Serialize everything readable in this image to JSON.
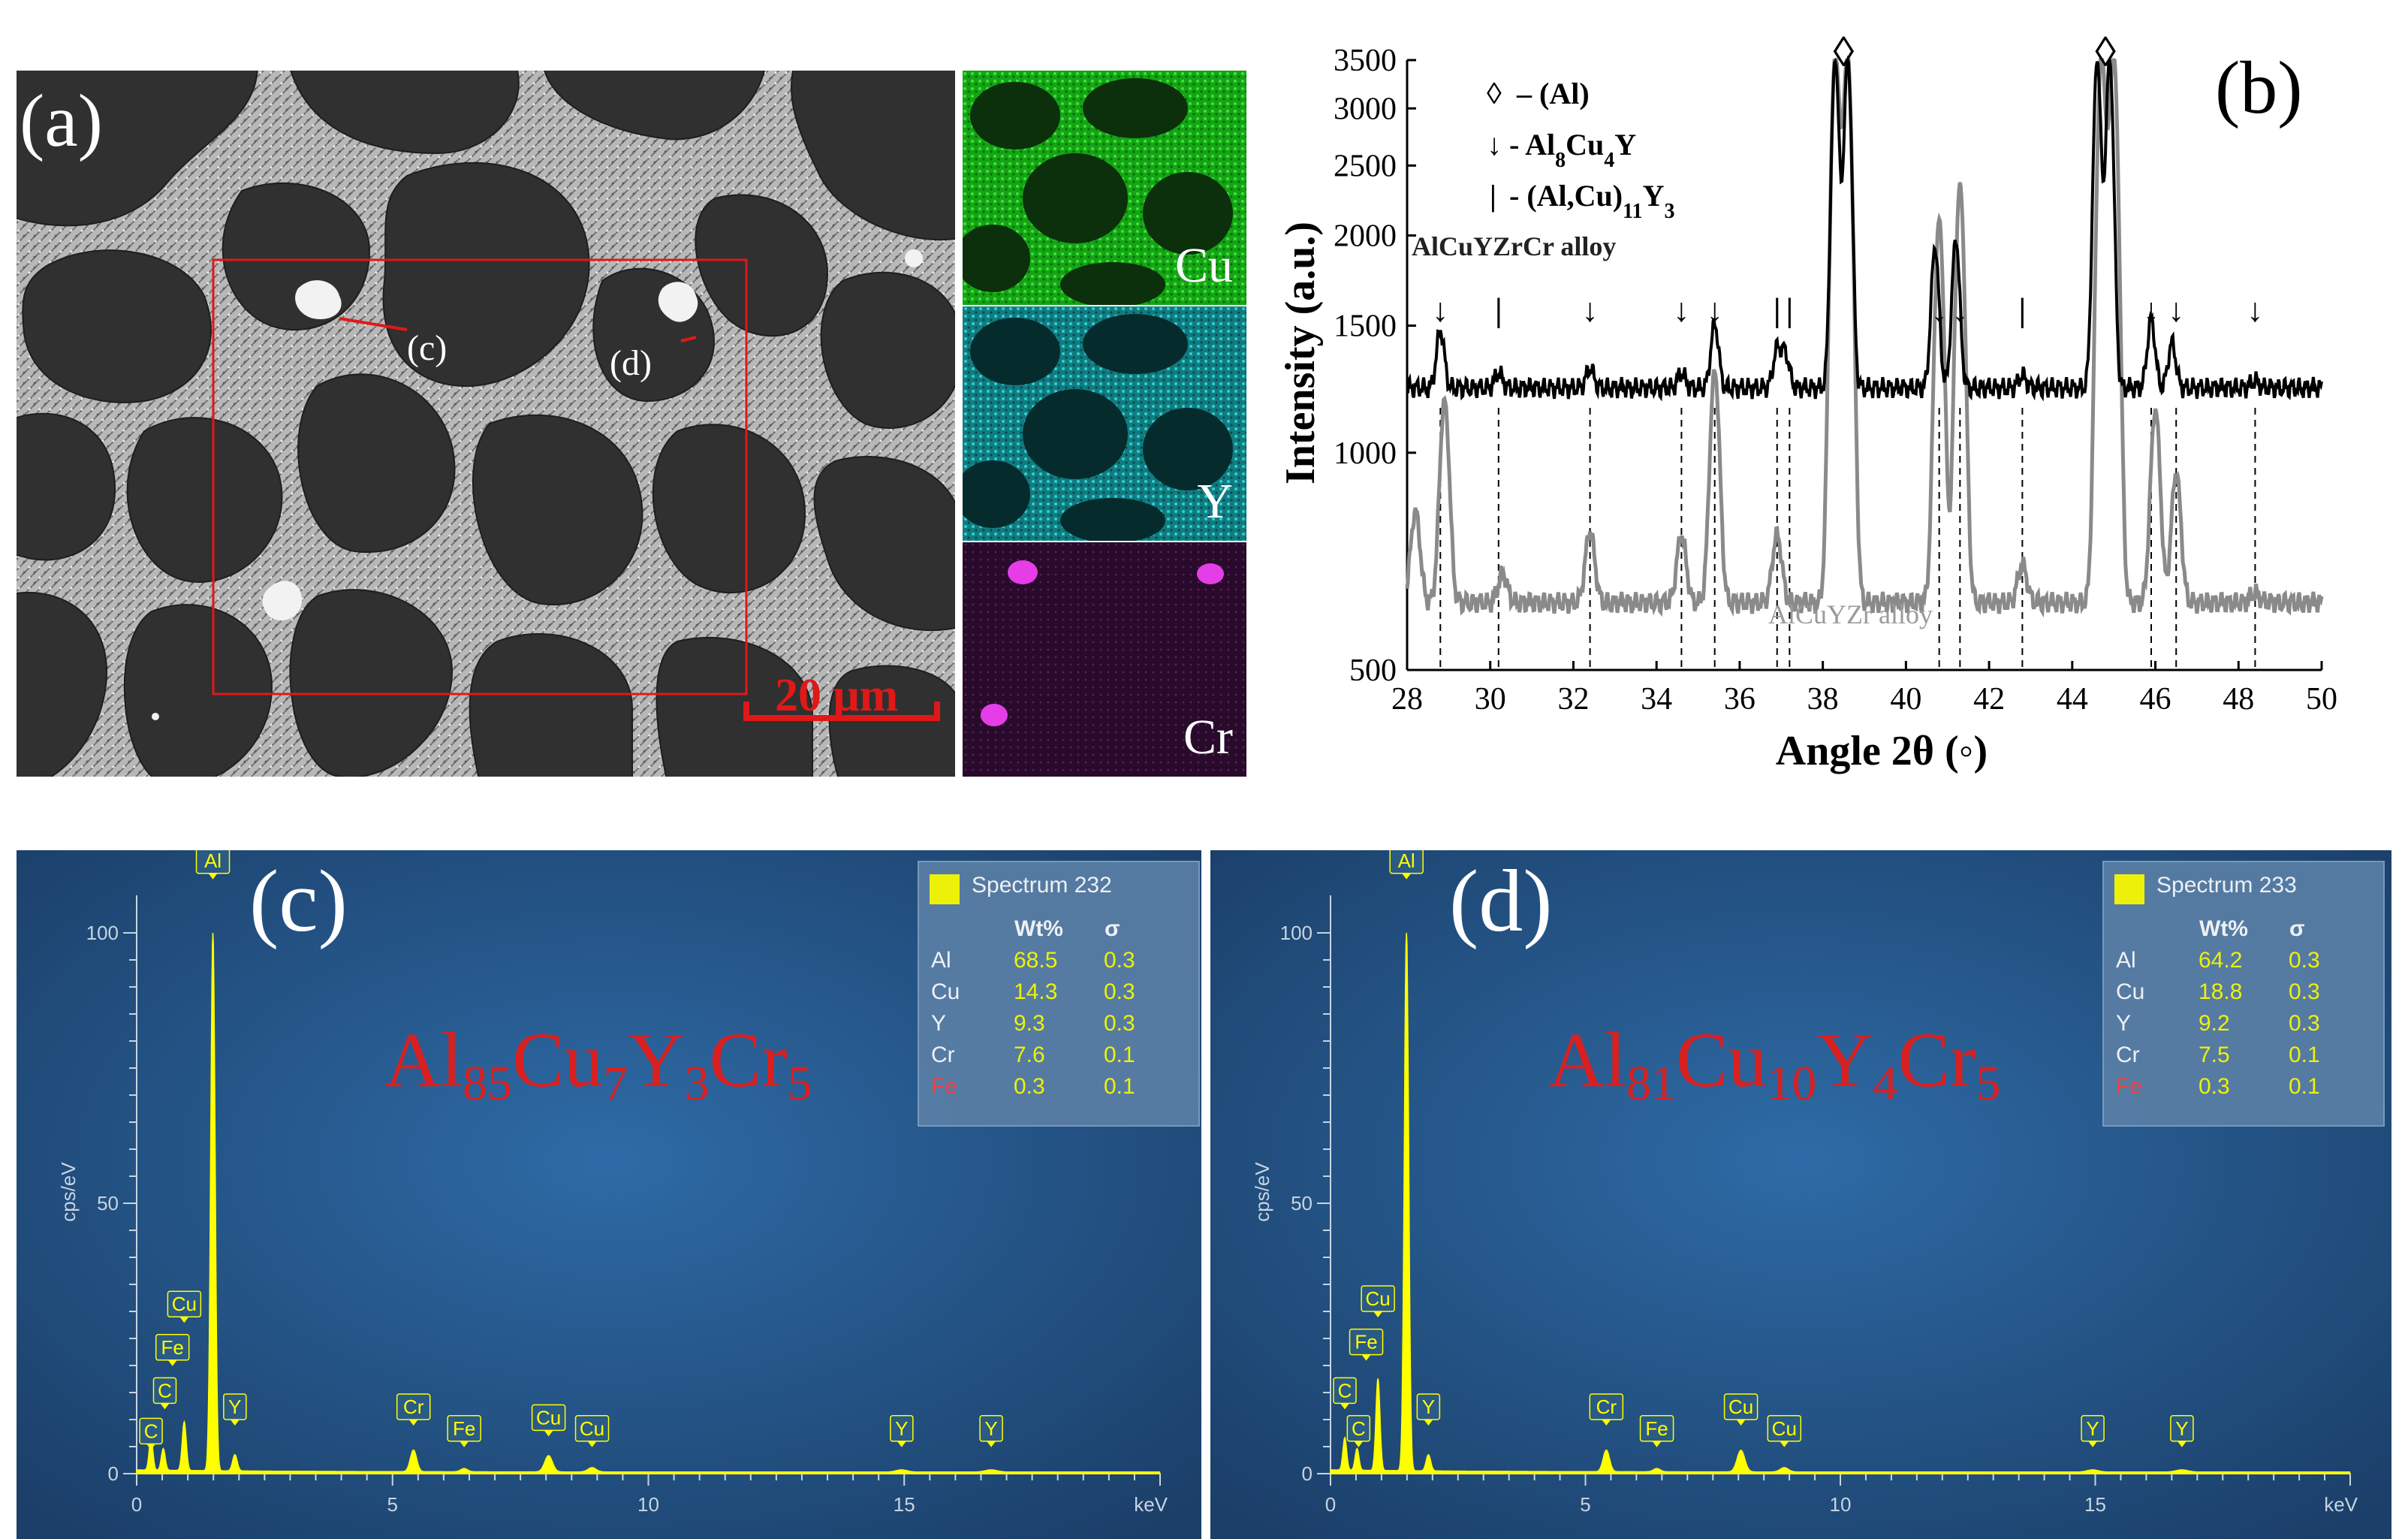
{
  "panel_a": {
    "tag": "(a)",
    "markers": [
      "(c)",
      "(d)"
    ],
    "scale_bar": "20 μm",
    "maps": [
      {
        "element": "Cu",
        "color": "#22c41c"
      },
      {
        "element": "Y",
        "color": "#1fb3b8"
      },
      {
        "element": "Cr",
        "color": "#b21ab8"
      }
    ]
  },
  "panel_b": {
    "tag": "(b)",
    "legend": [
      {
        "symbol": "◊",
        "text": "– (Al)"
      },
      {
        "symbol": "↓",
        "text": "- Al8Cu4Y"
      },
      {
        "symbol": "|",
        "text": "- (Al,Cu)11Y3"
      }
    ],
    "series_labels": [
      "AlCuYZrCr alloy",
      "AlCuYZr alloy"
    ],
    "chart_data": {
      "type": "line",
      "xlabel": "Angle 2θ (◦)",
      "ylabel": "Intensity (a.u.)",
      "xlim": [
        28,
        50
      ],
      "ylim": [
        500,
        3500
      ],
      "yscale": "log",
      "xticks": [
        28,
        30,
        32,
        34,
        36,
        38,
        40,
        42,
        44,
        46,
        48,
        50
      ],
      "yticks": [
        500,
        1000,
        1500,
        2000,
        2500,
        3000,
        3500
      ],
      "grid": false,
      "series": [
        {
          "name": "AlCuYZrCr alloy",
          "color": "#000000",
          "baseline": 1230,
          "peaks": [
            [
              28.8,
              1480
            ],
            [
              30.2,
              1290
            ],
            [
              32.4,
              1310
            ],
            [
              34.6,
              1290
            ],
            [
              35.4,
              1510
            ],
            [
              36.9,
              1390
            ],
            [
              37.1,
              1370
            ],
            [
              38.3,
              3500
            ],
            [
              38.6,
              3500
            ],
            [
              40.7,
              1930
            ],
            [
              41.2,
              1980
            ],
            [
              42.8,
              1280
            ],
            [
              44.6,
              3500
            ],
            [
              44.9,
              3500
            ],
            [
              45.9,
              1530
            ],
            [
              46.4,
              1420
            ],
            [
              48.4,
              1260
            ]
          ]
        },
        {
          "name": "AlCuYZr alloy",
          "color": "#8a8a8a",
          "baseline": 620,
          "peaks": [
            [
              28.2,
              830
            ],
            [
              28.9,
              1180
            ],
            [
              30.3,
              680
            ],
            [
              32.4,
              780
            ],
            [
              34.6,
              770
            ],
            [
              35.4,
              1300
            ],
            [
              36.9,
              770
            ],
            [
              38.3,
              3500
            ],
            [
              38.6,
              3500
            ],
            [
              40.8,
              2100
            ],
            [
              41.3,
              2350
            ],
            [
              42.8,
              700
            ],
            [
              44.7,
              3500
            ],
            [
              45.0,
              3500
            ],
            [
              46.0,
              1150
            ],
            [
              46.5,
              940
            ],
            [
              48.4,
              640
            ]
          ]
        }
      ],
      "peak_marks": [
        {
          "x": 28.8,
          "symbol": "↓"
        },
        {
          "x": 30.2,
          "symbol": "|"
        },
        {
          "x": 32.4,
          "symbol": "↓"
        },
        {
          "x": 34.6,
          "symbol": "↓"
        },
        {
          "x": 35.4,
          "symbol": "↓"
        },
        {
          "x": 36.9,
          "symbol": "|"
        },
        {
          "x": 37.2,
          "symbol": "|"
        },
        {
          "x": 38.5,
          "symbol": "◊"
        },
        {
          "x": 40.8,
          "symbol": "↓"
        },
        {
          "x": 41.3,
          "symbol": "↓"
        },
        {
          "x": 42.8,
          "symbol": "|"
        },
        {
          "x": 44.8,
          "symbol": "◊"
        },
        {
          "x": 45.9,
          "symbol": "↓"
        },
        {
          "x": 46.5,
          "symbol": "↓"
        },
        {
          "x": 48.4,
          "symbol": "↓"
        }
      ]
    }
  },
  "panel_c": {
    "tag": "(c)",
    "formula": {
      "parts": [
        [
          "Al",
          "85"
        ],
        [
          "Cu",
          "7"
        ],
        [
          "Y",
          "3"
        ],
        [
          "Cr",
          "5"
        ]
      ]
    },
    "legend": {
      "title": "Spectrum 232",
      "headers": [
        "",
        "Wt%",
        "σ"
      ],
      "rows": [
        {
          "el": "Al",
          "wt": "68.5",
          "sigma": "0.3",
          "color": "#ffffff"
        },
        {
          "el": "Cu",
          "wt": "14.3",
          "sigma": "0.3",
          "color": "#ffffff"
        },
        {
          "el": "Y",
          "wt": "9.3",
          "sigma": "0.3",
          "color": "#ffffff"
        },
        {
          "el": "Cr",
          "wt": "7.6",
          "sigma": "0.1",
          "color": "#ffffff"
        },
        {
          "el": "Fe",
          "wt": "0.3",
          "sigma": "0.1",
          "color": "#ff4040"
        }
      ]
    },
    "chart_data": {
      "type": "line",
      "xlabel": "keV",
      "ylabel": "cps/eV",
      "xlim": [
        0,
        20
      ],
      "ylim": [
        0,
        100
      ],
      "xticks": [
        0,
        5,
        10,
        15
      ],
      "yticks": [
        0,
        50,
        100
      ],
      "peaks": [
        [
          0.28,
          6
        ],
        [
          0.52,
          4
        ],
        [
          0.93,
          9
        ],
        [
          1.49,
          100
        ],
        [
          1.92,
          3
        ],
        [
          5.41,
          4
        ],
        [
          6.4,
          0.6
        ],
        [
          8.05,
          3
        ],
        [
          8.9,
          0.8
        ],
        [
          14.95,
          0.4
        ],
        [
          16.7,
          0.4
        ]
      ],
      "peak_labels": [
        {
          "label": "C",
          "x": 0.28,
          "y": 5.5
        },
        {
          "label": "C",
          "x": 0.55,
          "y": 13
        },
        {
          "label": "Fe",
          "x": 0.7,
          "y": 21
        },
        {
          "label": "Cu",
          "x": 0.93,
          "y": 29
        },
        {
          "label": "Al",
          "x": 1.49,
          "y": 111
        },
        {
          "label": "Y",
          "x": 1.92,
          "y": 10
        },
        {
          "label": "Cr",
          "x": 5.41,
          "y": 10
        },
        {
          "label": "Fe",
          "x": 6.4,
          "y": 6
        },
        {
          "label": "Cu",
          "x": 8.05,
          "y": 8
        },
        {
          "label": "Cu",
          "x": 8.9,
          "y": 6
        },
        {
          "label": "Y",
          "x": 14.95,
          "y": 6
        },
        {
          "label": "Y",
          "x": 16.7,
          "y": 6
        }
      ]
    }
  },
  "panel_d": {
    "tag": "(d)",
    "formula": {
      "parts": [
        [
          "Al",
          "81"
        ],
        [
          "Cu",
          "10"
        ],
        [
          "Y",
          "4"
        ],
        [
          "Cr",
          "5"
        ]
      ]
    },
    "legend": {
      "title": "Spectrum 233",
      "headers": [
        "",
        "Wt%",
        "σ"
      ],
      "rows": [
        {
          "el": "Al",
          "wt": "64.2",
          "sigma": "0.3",
          "color": "#ffffff"
        },
        {
          "el": "Cu",
          "wt": "18.8",
          "sigma": "0.3",
          "color": "#ffffff"
        },
        {
          "el": "Y",
          "wt": "9.2",
          "sigma": "0.3",
          "color": "#ffffff"
        },
        {
          "el": "Cr",
          "wt": "7.5",
          "sigma": "0.1",
          "color": "#ffffff"
        },
        {
          "el": "Fe",
          "wt": "0.3",
          "sigma": "0.1",
          "color": "#ff4040"
        }
      ]
    },
    "chart_data": {
      "type": "line",
      "xlabel": "keV",
      "ylabel": "cps/eV",
      "xlim": [
        0,
        20
      ],
      "ylim": [
        0,
        100
      ],
      "xticks": [
        0,
        5,
        10,
        15
      ],
      "yticks": [
        0,
        50,
        100
      ],
      "peaks": [
        [
          0.28,
          6
        ],
        [
          0.52,
          4
        ],
        [
          0.93,
          17
        ],
        [
          1.49,
          100
        ],
        [
          1.92,
          3
        ],
        [
          5.41,
          4
        ],
        [
          6.4,
          0.6
        ],
        [
          8.05,
          4
        ],
        [
          8.9,
          0.8
        ],
        [
          14.95,
          0.4
        ],
        [
          16.7,
          0.4
        ]
      ],
      "peak_labels": [
        {
          "label": "C",
          "x": 0.28,
          "y": 13
        },
        {
          "label": "C",
          "x": 0.55,
          "y": 6
        },
        {
          "label": "Fe",
          "x": 0.7,
          "y": 22
        },
        {
          "label": "Cu",
          "x": 0.93,
          "y": 30
        },
        {
          "label": "Al",
          "x": 1.49,
          "y": 111
        },
        {
          "label": "Y",
          "x": 1.92,
          "y": 10
        },
        {
          "label": "Cr",
          "x": 5.41,
          "y": 10
        },
        {
          "label": "Fe",
          "x": 6.4,
          "y": 6
        },
        {
          "label": "Cu",
          "x": 8.05,
          "y": 10
        },
        {
          "label": "Cu",
          "x": 8.9,
          "y": 6
        },
        {
          "label": "Y",
          "x": 14.95,
          "y": 6
        },
        {
          "label": "Y",
          "x": 16.7,
          "y": 6
        }
      ]
    }
  }
}
